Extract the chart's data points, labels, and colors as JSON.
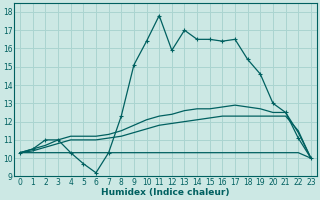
{
  "xlabel": "Humidex (Indice chaleur)",
  "background_color": "#cce8e4",
  "grid_color": "#aad4d0",
  "line_color": "#006060",
  "xlim": [
    -0.5,
    23.5
  ],
  "ylim": [
    9,
    18.5
  ],
  "xticks": [
    0,
    1,
    2,
    3,
    4,
    5,
    6,
    7,
    8,
    9,
    10,
    11,
    12,
    13,
    14,
    15,
    16,
    17,
    18,
    19,
    20,
    21,
    22,
    23
  ],
  "yticks": [
    9,
    10,
    11,
    12,
    13,
    14,
    15,
    16,
    17,
    18
  ],
  "line1_x": [
    0,
    1,
    2,
    3,
    4,
    5,
    6,
    7,
    8,
    9,
    10,
    11,
    12,
    13,
    14,
    15,
    16,
    17,
    18,
    19,
    20,
    21,
    22,
    23
  ],
  "line1_y": [
    10.3,
    10.5,
    11.0,
    11.0,
    10.3,
    9.7,
    9.2,
    10.3,
    12.3,
    15.1,
    16.4,
    17.8,
    15.9,
    17.0,
    16.5,
    16.5,
    16.4,
    16.5,
    15.4,
    14.6,
    13.0,
    12.5,
    11.1,
    10.0
  ],
  "line2_x": [
    0,
    1,
    2,
    3,
    4,
    5,
    6,
    7,
    8,
    9,
    10,
    11,
    12,
    13,
    14,
    15,
    16,
    17,
    18,
    19,
    20,
    21,
    22,
    23
  ],
  "line2_y": [
    10.3,
    10.3,
    10.3,
    10.3,
    10.3,
    10.3,
    10.3,
    10.3,
    10.3,
    10.3,
    10.3,
    10.3,
    10.3,
    10.3,
    10.3,
    10.3,
    10.3,
    10.3,
    10.3,
    10.3,
    10.3,
    10.3,
    10.3,
    10.0
  ],
  "line3_x": [
    0,
    1,
    2,
    3,
    4,
    5,
    6,
    7,
    8,
    9,
    10,
    11,
    12,
    13,
    14,
    15,
    16,
    17,
    18,
    19,
    20,
    21,
    22,
    23
  ],
  "line3_y": [
    10.3,
    10.4,
    10.6,
    10.8,
    11.0,
    11.0,
    11.0,
    11.1,
    11.2,
    11.4,
    11.6,
    11.8,
    11.9,
    12.0,
    12.1,
    12.2,
    12.3,
    12.3,
    12.3,
    12.3,
    12.3,
    12.3,
    11.5,
    10.0
  ],
  "line4_x": [
    0,
    1,
    2,
    3,
    4,
    5,
    6,
    7,
    8,
    9,
    10,
    11,
    12,
    13,
    14,
    15,
    16,
    17,
    18,
    19,
    20,
    21,
    22,
    23
  ],
  "line4_y": [
    10.3,
    10.5,
    10.7,
    11.0,
    11.2,
    11.2,
    11.2,
    11.3,
    11.5,
    11.8,
    12.1,
    12.3,
    12.4,
    12.6,
    12.7,
    12.7,
    12.8,
    12.9,
    12.8,
    12.7,
    12.5,
    12.5,
    11.4,
    10.0
  ]
}
